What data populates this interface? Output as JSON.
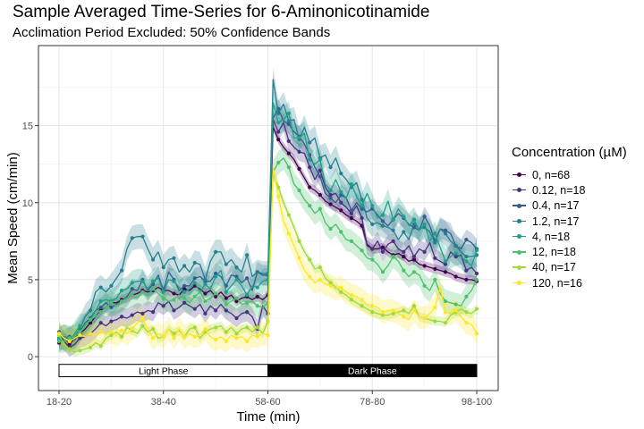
{
  "chart_data": {
    "type": "line",
    "title": "Sample Averaged Time-Series for 6-Aminonicotinamide",
    "subtitle": "Acclimation Period Excluded: 50% Confidence Bands",
    "xlabel": "Time (min)",
    "ylabel": "Mean Speed (cm/min)",
    "x_tick_labels": [
      "18-20",
      "38-40",
      "58-60",
      "78-80",
      "98-100"
    ],
    "x_ticks": [
      19,
      39,
      59,
      79,
      99
    ],
    "y_ticks": [
      0,
      5,
      10,
      15
    ],
    "xlim": [
      19,
      99
    ],
    "ylim": [
      -2.2,
      20.2
    ],
    "grid": true,
    "legend_title": "Concentration (µM)",
    "legend_position": "right",
    "phases": [
      {
        "label": "Light Phase",
        "start": 19,
        "end": 59,
        "fill": "#ffffff",
        "text_color": "#000000"
      },
      {
        "label": "Dark Phase",
        "start": 59,
        "end": 99,
        "fill": "#000000",
        "text_color": "#ffffff"
      }
    ],
    "x": [
      19,
      20,
      21,
      22,
      23,
      24,
      25,
      26,
      27,
      28,
      29,
      30,
      31,
      32,
      33,
      34,
      35,
      36,
      37,
      38,
      39,
      40,
      41,
      42,
      43,
      44,
      45,
      46,
      47,
      48,
      49,
      50,
      51,
      52,
      53,
      54,
      55,
      56,
      57,
      58,
      59,
      60,
      61,
      62,
      63,
      64,
      65,
      66,
      67,
      68,
      69,
      70,
      71,
      72,
      73,
      74,
      75,
      76,
      77,
      78,
      79,
      80,
      81,
      82,
      83,
      84,
      85,
      86,
      87,
      88,
      89,
      90,
      91,
      92,
      93,
      94,
      95,
      96,
      97,
      98,
      99
    ],
    "series": [
      {
        "name": "0, n=68",
        "color": "#440154",
        "band": 0.3,
        "values": [
          0.9,
          1.3,
          0.8,
          1.2,
          1.5,
          1.8,
          2.2,
          2.6,
          3.0,
          3.2,
          3.5,
          3.5,
          3.7,
          3.8,
          4.0,
          4.1,
          4.3,
          4.2,
          4.3,
          4.5,
          4.3,
          4.3,
          4.1,
          4.0,
          4.4,
          4.3,
          4.6,
          4.4,
          4.1,
          4.3,
          3.9,
          4.2,
          3.8,
          4.0,
          3.6,
          3.8,
          3.9,
          3.7,
          3.9,
          3.7,
          4.0,
          14.9,
          14.1,
          13.6,
          13.2,
          12.8,
          12.2,
          11.6,
          11.0,
          10.8,
          10.5,
          10.1,
          9.9,
          9.7,
          9.5,
          9.2,
          9.0,
          8.8,
          8.5,
          7.3,
          7.0,
          7.0,
          7.1,
          6.8,
          6.6,
          6.7,
          6.5,
          6.2,
          6.3,
          6.0,
          5.9,
          5.8,
          5.7,
          5.6,
          5.5,
          5.4,
          5.2,
          5.1,
          5.0,
          5.0,
          4.9
        ]
      },
      {
        "name": "0.12, n=18",
        "color": "#46337e",
        "band": 0.6,
        "values": [
          1.2,
          1.0,
          0.6,
          0.8,
          1.2,
          1.3,
          1.5,
          1.8,
          2.2,
          2.0,
          2.3,
          2.4,
          2.6,
          2.5,
          2.7,
          2.9,
          2.8,
          3.0,
          2.9,
          3.5,
          3.3,
          3.6,
          3.0,
          3.2,
          3.5,
          3.3,
          3.1,
          3.4,
          2.8,
          3.3,
          3.0,
          3.4,
          3.0,
          2.8,
          2.5,
          2.8,
          2.9,
          2.6,
          1.8,
          3.3,
          2.8,
          15.4,
          14.6,
          15.2,
          14.0,
          13.6,
          13.3,
          13.2,
          12.3,
          11.5,
          12.1,
          11.0,
          10.5,
          10.6,
          10.0,
          9.7,
          9.3,
          9.8,
          9.0,
          7.2,
          7.0,
          7.5,
          6.8,
          7.3,
          7.5,
          7.0,
          6.8,
          7.2,
          6.5,
          7.0,
          6.8,
          7.4,
          6.4,
          6.2,
          6.0,
          6.8,
          6.5,
          6.6,
          5.6,
          5.8,
          5.4
        ]
      },
      {
        "name": "0.4, n=17",
        "color": "#365c8d",
        "band": 0.65,
        "values": [
          1.6,
          1.0,
          1.3,
          1.1,
          1.6,
          2.2,
          2.5,
          3.0,
          3.2,
          3.5,
          3.2,
          3.4,
          3.6,
          3.9,
          4.4,
          4.3,
          5.0,
          4.3,
          4.7,
          5.3,
          4.3,
          5.5,
          5.0,
          4.3,
          4.6,
          4.6,
          5.1,
          5.2,
          4.9,
          4.9,
          5.4,
          5.2,
          4.6,
          5.3,
          5.2,
          4.8,
          5.1,
          4.3,
          5.5,
          5.3,
          5.3,
          15.5,
          16.1,
          15.3,
          15.1,
          14.6,
          14.3,
          13.8,
          13.1,
          12.3,
          11.7,
          10.6,
          10.3,
          10.0,
          10.5,
          10.3,
          9.5,
          10.0,
          9.6,
          9.4,
          9.6,
          9.2,
          8.8,
          8.5,
          8.9,
          9.3,
          9.0,
          8.6,
          8.4,
          8.2,
          9.1,
          8.5,
          7.5,
          8.3,
          8.2,
          8.0,
          7.2,
          7.0,
          7.6,
          7.4,
          7.0
        ]
      },
      {
        "name": "1.2, n=17",
        "color": "#277f8e",
        "band": 0.8,
        "values": [
          1.1,
          1.3,
          1.2,
          1.3,
          1.8,
          2.6,
          3.0,
          4.2,
          4.5,
          4.2,
          4.6,
          5.1,
          5.6,
          7.0,
          7.7,
          7.8,
          7.8,
          7.0,
          6.3,
          6.8,
          5.8,
          6.3,
          6.4,
          5.5,
          5.9,
          5.5,
          6.1,
          6.0,
          5.0,
          6.2,
          6.8,
          6.8,
          6.0,
          6.3,
          5.8,
          5.5,
          6.6,
          5.2,
          5.5,
          5.4,
          5.4,
          18.0,
          15.8,
          16.4,
          15.3,
          15.4,
          14.1,
          14.9,
          13.9,
          14.2,
          12.9,
          13.1,
          12.3,
          12.9,
          11.9,
          11.5,
          11.0,
          11.3,
          10.2,
          9.0,
          8.6,
          8.7,
          8.5,
          8.4,
          8.2,
          7.6,
          8.1,
          7.6,
          8.6,
          8.3,
          8.4,
          8.1,
          7.4,
          8.3,
          8.0,
          7.5,
          7.2,
          6.8,
          6.5,
          6.5,
          6.6
        ]
      },
      {
        "name": "4, n=18",
        "color": "#1f9e89",
        "band": 0.8,
        "values": [
          1.2,
          1.3,
          1.0,
          1.5,
          2.0,
          2.0,
          2.4,
          3.0,
          3.6,
          3.7,
          3.6,
          3.8,
          4.3,
          4.4,
          4.8,
          4.9,
          4.9,
          4.4,
          4.9,
          5.1,
          4.2,
          5.0,
          4.9,
          4.5,
          4.2,
          4.4,
          4.8,
          4.2,
          4.7,
          4.4,
          5.2,
          5.6,
          4.2,
          4.6,
          5.0,
          4.6,
          4.0,
          4.6,
          4.5,
          4.9,
          5.0,
          16.5,
          15.2,
          15.4,
          15.8,
          14.2,
          14.2,
          14.5,
          12.8,
          12.5,
          12.8,
          11.2,
          10.8,
          11.5,
          10.7,
          10.3,
          11.2,
          10.4,
          9.8,
          10.6,
          9.8,
          9.0,
          9.2,
          10.1,
          8.9,
          9.6,
          9.1,
          8.5,
          8.9,
          8.2,
          8.6,
          7.5,
          8.0,
          7.1,
          6.2,
          6.5,
          6.7,
          6.5,
          6.2,
          5.9,
          6.9
        ]
      },
      {
        "name": "12, n=18",
        "color": "#4ac16d",
        "band": 0.75,
        "values": [
          1.0,
          1.0,
          1.2,
          1.3,
          1.6,
          2.0,
          2.4,
          2.6,
          2.9,
          3.2,
          3.5,
          3.3,
          3.6,
          3.8,
          4.0,
          3.8,
          4.2,
          4.0,
          4.4,
          4.1,
          3.8,
          3.6,
          3.7,
          4.0,
          3.8,
          3.5,
          3.9,
          4.2,
          3.6,
          3.8,
          4.1,
          3.9,
          3.4,
          3.6,
          3.8,
          3.4,
          3.5,
          3.6,
          3.3,
          3.2,
          3.5,
          12.0,
          12.6,
          12.9,
          12.3,
          11.2,
          10.8,
          10.2,
          9.8,
          9.3,
          9.6,
          8.7,
          8.3,
          8.6,
          8.1,
          7.6,
          7.5,
          7.2,
          6.9,
          6.4,
          6.3,
          6.0,
          5.5,
          5.9,
          6.5,
          6.2,
          5.6,
          5.2,
          5.5,
          5.3,
          4.6,
          4.3,
          5.0,
          4.1,
          3.6,
          3.5,
          3.4,
          3.3,
          3.9,
          4.3,
          5.0
        ]
      },
      {
        "name": "40, n=17",
        "color": "#a0da39",
        "band": 0.3,
        "values": [
          1.4,
          0.8,
          0.5,
          0.3,
          0.4,
          0.5,
          0.6,
          0.9,
          0.7,
          1.2,
          1.4,
          1.6,
          1.3,
          1.9,
          1.7,
          1.5,
          2.0,
          1.6,
          1.8,
          1.2,
          1.3,
          1.8,
          1.5,
          1.7,
          1.3,
          1.8,
          1.9,
          1.2,
          1.6,
          1.8,
          1.9,
          2.0,
          1.6,
          1.9,
          1.5,
          1.8,
          1.9,
          1.6,
          1.9,
          1.5,
          2.3,
          11.9,
          11.0,
          10.0,
          9.2,
          8.4,
          7.5,
          6.8,
          6.3,
          5.7,
          5.8,
          5.1,
          4.8,
          4.5,
          4.2,
          4.0,
          3.7,
          3.5,
          3.3,
          3.1,
          2.9,
          2.8,
          2.7,
          2.7,
          2.8,
          2.9,
          3.0,
          2.8,
          3.3,
          2.6,
          2.5,
          2.4,
          2.3,
          2.3,
          2.2,
          2.7,
          2.9,
          3.1,
          2.9,
          2.8,
          3.1
        ]
      },
      {
        "name": "120, n=16",
        "color": "#fde725",
        "band": 0.75,
        "values": [
          1.5,
          1.2,
          1.0,
          1.2,
          1.4,
          1.3,
          1.5,
          1.4,
          1.6,
          1.5,
          1.6,
          1.4,
          1.7,
          1.5,
          1.8,
          2.2,
          2.5,
          1.8,
          1.2,
          1.5,
          1.3,
          1.8,
          1.2,
          1.8,
          1.3,
          1.5,
          1.3,
          1.4,
          1.8,
          1.3,
          1.1,
          1.3,
          1.0,
          1.4,
          1.2,
          1.3,
          1.0,
          1.4,
          1.3,
          1.5,
          1.4,
          12.3,
          10.4,
          8.8,
          8.0,
          7.2,
          6.4,
          5.6,
          5.2,
          4.8,
          5.0,
          4.7,
          4.6,
          4.4,
          4.5,
          4.2,
          4.0,
          3.9,
          3.7,
          3.4,
          3.3,
          3.2,
          2.9,
          3.0,
          3.0,
          2.8,
          2.6,
          2.4,
          3.0,
          2.6,
          2.5,
          2.8,
          3.2,
          4.5,
          2.9,
          2.8,
          3.0,
          2.6,
          2.2,
          2.1,
          1.5
        ]
      }
    ]
  }
}
